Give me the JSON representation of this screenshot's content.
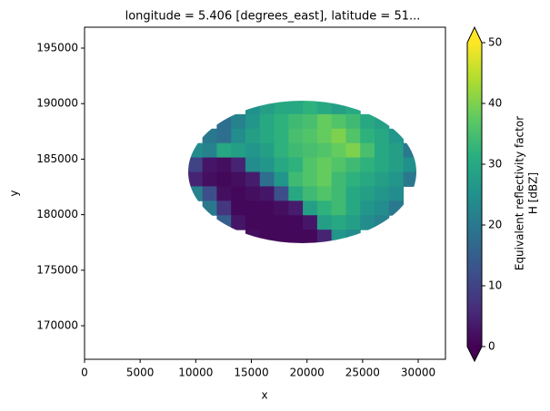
{
  "chart_data": {
    "type": "heatmap",
    "title": "longitude = 5.406 [degrees_east], latitude = 51...",
    "x_label": "x",
    "y_label": "y",
    "xlim": [
      0,
      32450
    ],
    "ylim": [
      166980,
      196880
    ],
    "xticks": [
      0,
      5000,
      10000,
      15000,
      20000,
      25000,
      30000
    ],
    "yticks": [
      170000,
      175000,
      180000,
      185000,
      190000,
      195000
    ],
    "x": [
      9950,
      11240,
      12530,
      13820,
      15110,
      16400,
      17690,
      18980,
      20270,
      21560,
      22850,
      24140,
      25430,
      26720,
      28010,
      29300
    ],
    "y": [
      189700,
      188400,
      187100,
      185800,
      184500,
      183200,
      181900,
      180600,
      179300,
      178000
    ],
    "values": [
      [
        null,
        null,
        null,
        null,
        25,
        28,
        30,
        30,
        32,
        30,
        28,
        30,
        null,
        null,
        null,
        null
      ],
      [
        null,
        null,
        18,
        22,
        26,
        30,
        32,
        34,
        35,
        38,
        36,
        34,
        30,
        28,
        null,
        null
      ],
      [
        null,
        20,
        18,
        24,
        28,
        30,
        32,
        35,
        36,
        38,
        40,
        36,
        32,
        30,
        26,
        null
      ],
      [
        24,
        22,
        30,
        28,
        26,
        28,
        32,
        34,
        35,
        36,
        38,
        40,
        35,
        30,
        28,
        20
      ],
      [
        10,
        3,
        2,
        5,
        24,
        26,
        30,
        32,
        36,
        38,
        36,
        34,
        32,
        30,
        28,
        25
      ],
      [
        5,
        2,
        1,
        2,
        4,
        18,
        26,
        34,
        36,
        38,
        34,
        32,
        30,
        28,
        26,
        20
      ],
      [
        22,
        12,
        2,
        1,
        2,
        3,
        12,
        30,
        34,
        36,
        34,
        30,
        28,
        26,
        24,
        null
      ],
      [
        null,
        20,
        8,
        1,
        1,
        1,
        2,
        4,
        28,
        32,
        34,
        30,
        26,
        24,
        20,
        null
      ],
      [
        null,
        null,
        15,
        3,
        1,
        1,
        1,
        1,
        3,
        28,
        30,
        28,
        24,
        22,
        null,
        null
      ],
      [
        null,
        null,
        null,
        null,
        2,
        1,
        1,
        1,
        1,
        5,
        26,
        24,
        null,
        null,
        null,
        null
      ]
    ],
    "colormap": "viridis",
    "colorbar": {
      "clim": [
        0,
        50
      ],
      "ticks": [
        0,
        10,
        20,
        30,
        40,
        50
      ],
      "label": [
        "Equivalent reflectivity factor",
        "H [dBZ]"
      ],
      "extend": "both"
    }
  }
}
